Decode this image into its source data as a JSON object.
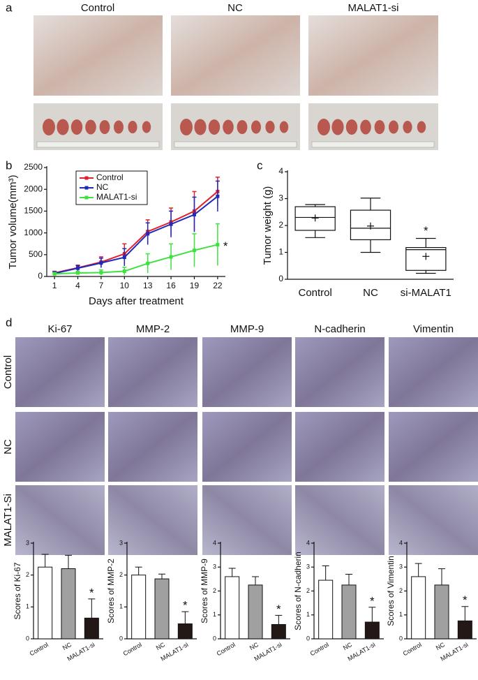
{
  "panel_a": {
    "label": "a",
    "groups": [
      "Control",
      "NC",
      "MALAT1-si"
    ]
  },
  "panel_d": {
    "label": "d",
    "stains": [
      "Ki-67",
      "MMP-2",
      "MMP-9",
      "N-cadherin",
      "Vimentin"
    ],
    "rows": [
      "Control",
      "NC",
      "MALAT1-Si"
    ]
  },
  "chart_data": [
    {
      "type": "line",
      "label": "b",
      "xlabel": "Days after treatment",
      "ylabel": "Tumor volume(mm³)",
      "x": [
        1,
        4,
        7,
        10,
        13,
        16,
        19,
        22
      ],
      "xlim": [
        0,
        23
      ],
      "xticks": [
        1,
        4,
        7,
        10,
        13,
        16,
        19,
        22
      ],
      "ylim": [
        0,
        2500
      ],
      "yticks": [
        0,
        500,
        1000,
        1500,
        2000,
        2500
      ],
      "legend": "upper left",
      "annotation": "*",
      "series": [
        {
          "name": "Control",
          "color": "#e0202a",
          "values": [
            80,
            200,
            330,
            520,
            1030,
            1250,
            1500,
            1950
          ],
          "errors": [
            40,
            60,
            120,
            230,
            270,
            320,
            450,
            330
          ]
        },
        {
          "name": "NC",
          "color": "#1f2bb8",
          "values": [
            70,
            190,
            310,
            440,
            980,
            1200,
            1420,
            1840
          ],
          "errors": [
            40,
            60,
            110,
            200,
            250,
            300,
            400,
            350
          ]
        },
        {
          "name": "MALAT1-si",
          "color": "#3ee23e",
          "values": [
            60,
            80,
            90,
            120,
            300,
            450,
            600,
            730
          ],
          "errors": [
            30,
            40,
            60,
            90,
            220,
            300,
            380,
            480
          ]
        }
      ]
    },
    {
      "type": "box",
      "label": "c",
      "ylabel": "Tumor  weight (g)",
      "categories": [
        "Control",
        "NC",
        "si-MALAT1"
      ],
      "ylim": [
        0,
        4
      ],
      "yticks": [
        0,
        1,
        2,
        3,
        4
      ],
      "annotation": "*",
      "min": [
        1.55,
        1.0,
        0.22
      ],
      "q1": [
        1.82,
        1.47,
        0.33
      ],
      "median": [
        2.3,
        1.9,
        1.1
      ],
      "q3": [
        2.7,
        2.57,
        1.18
      ],
      "max": [
        2.78,
        3.02,
        1.52
      ],
      "mean": [
        2.28,
        1.98,
        0.85
      ]
    },
    {
      "type": "bar",
      "ylabel": "Scores of Ki-67",
      "categories": [
        "Control",
        "NC",
        "MALAT1-si"
      ],
      "colors": [
        "#ffffff",
        "#a0a0a0",
        "#231815"
      ],
      "ylim": [
        0,
        3
      ],
      "yticks": [
        0,
        1,
        2,
        3
      ],
      "values": [
        2.25,
        2.2,
        0.65
      ],
      "errors": [
        0.4,
        0.42,
        0.6
      ],
      "annotation": "*"
    },
    {
      "type": "bar",
      "ylabel": "Scores of MMP-2",
      "categories": [
        "Control",
        "NC",
        "MALAT1-si"
      ],
      "colors": [
        "#ffffff",
        "#a0a0a0",
        "#231815"
      ],
      "ylim": [
        0,
        3
      ],
      "yticks": [
        0,
        1,
        2,
        3
      ],
      "values": [
        2.0,
        1.88,
        0.47
      ],
      "errors": [
        0.25,
        0.15,
        0.38
      ],
      "annotation": "*"
    },
    {
      "type": "bar",
      "ylabel": "Scores of MMP-9",
      "categories": [
        "Control",
        "NC",
        "MALAT1-si"
      ],
      "colors": [
        "#ffffff",
        "#a0a0a0",
        "#231815"
      ],
      "ylim": [
        0,
        4
      ],
      "yticks": [
        0,
        1,
        2,
        3,
        4
      ],
      "values": [
        2.6,
        2.25,
        0.6
      ],
      "errors": [
        0.35,
        0.35,
        0.38
      ],
      "annotation": "*"
    },
    {
      "type": "bar",
      "ylabel": "Scores of N-cadherin",
      "categories": [
        "Control",
        "NC",
        "MALAT1-si"
      ],
      "colors": [
        "#ffffff",
        "#a0a0a0",
        "#231815"
      ],
      "ylim": [
        0,
        4
      ],
      "yticks": [
        0,
        1,
        2,
        3,
        4
      ],
      "values": [
        2.45,
        2.25,
        0.7
      ],
      "errors": [
        0.6,
        0.45,
        0.62
      ],
      "annotation": "*"
    },
    {
      "type": "bar",
      "ylabel": "Scores of Vimentin",
      "categories": [
        "Control",
        "NC",
        "MALAT1-si"
      ],
      "colors": [
        "#ffffff",
        "#a0a0a0",
        "#231815"
      ],
      "ylim": [
        0,
        4
      ],
      "yticks": [
        0,
        1,
        2,
        3,
        4
      ],
      "values": [
        2.6,
        2.25,
        0.75
      ],
      "errors": [
        0.55,
        0.68,
        0.6
      ],
      "annotation": "*"
    }
  ]
}
